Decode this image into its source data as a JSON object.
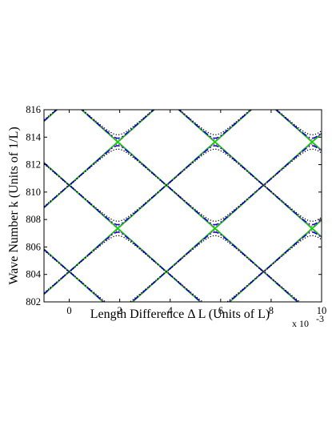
{
  "chart_data": {
    "type": "line",
    "xlabel": "Length Difference Δ L (Units of L)",
    "ylabel": "Wave Number k (Units of 1/L)",
    "x_exponent_label": "x 10",
    "x_exponent_power": "-3",
    "xlim": [
      -1,
      10
    ],
    "ylim": [
      802,
      816
    ],
    "xticks": [
      0,
      2,
      4,
      6,
      8,
      10
    ],
    "yticks": [
      802,
      804,
      806,
      808,
      810,
      812,
      814,
      816
    ],
    "grid": false,
    "crossing_points": [
      {
        "x": 0.0,
        "y": 804.2
      },
      {
        "x": 0.0,
        "y": 810.5
      },
      {
        "x": 3.85,
        "y": 807.35
      },
      {
        "x": 3.85,
        "y": 813.65
      },
      {
        "x": 7.7,
        "y": 804.2
      },
      {
        "x": 7.7,
        "y": 810.5
      }
    ],
    "series": [
      {
        "style": "dashed",
        "color": "#e00000",
        "gap_offset": -0.15,
        "values": [
          [
            -1,
            804.79
          ],
          [
            0,
            804.2
          ],
          [
            3.85,
            807.45
          ],
          [
            7.7,
            804.2
          ],
          [
            10,
            806.13
          ]
        ]
      },
      {
        "style": "solid",
        "color": "#00dd00",
        "gap_offset": 0.05,
        "values": [
          [
            -1,
            804.79
          ],
          [
            0,
            804.25
          ],
          [
            3.85,
            807.35
          ],
          [
            7.7,
            804.25
          ],
          [
            10,
            806.13
          ]
        ]
      },
      {
        "style": "dotted",
        "color": "#e000e0",
        "gap_offset": 0.35,
        "values": [
          [
            -1,
            804.79
          ],
          [
            0,
            804.55
          ],
          [
            3.85,
            807.0
          ],
          [
            7.7,
            804.55
          ],
          [
            10,
            806.13
          ]
        ]
      },
      {
        "style": "dashdot",
        "color": "#0000dd",
        "gap_offset": 0.55,
        "values": [
          [
            -1,
            804.79
          ],
          [
            0,
            804.75
          ],
          [
            3.85,
            806.85
          ],
          [
            7.7,
            804.75
          ],
          [
            10,
            806.13
          ]
        ]
      },
      {
        "style": "dotted",
        "color": "#000000",
        "gap_offset": 1.05,
        "values": [
          [
            -1,
            804.79
          ],
          [
            0,
            805.25
          ],
          [
            3.85,
            806.25
          ],
          [
            7.7,
            805.25
          ],
          [
            10,
            806.13
          ]
        ]
      }
    ]
  }
}
